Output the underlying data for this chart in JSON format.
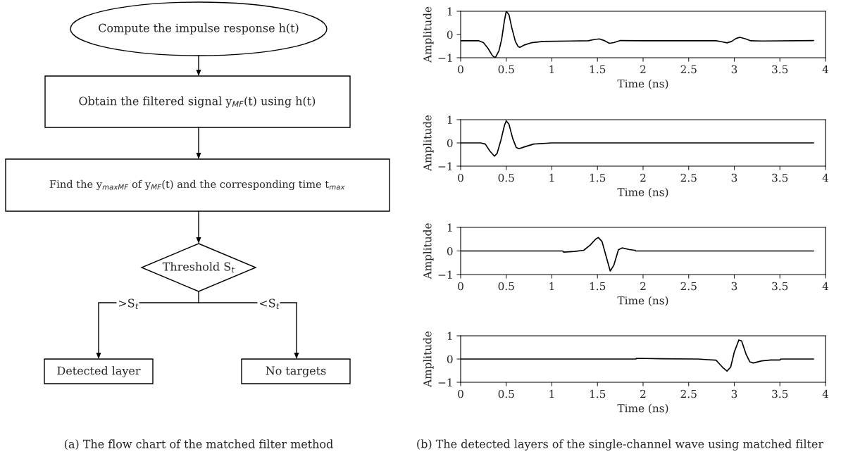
{
  "chart_data": [
    {
      "type": "other",
      "annotations": [
        "Compute the impulse response h(t)",
        "Obtain the filtered signal y$_{MF}$(t) using h(t)",
        "Find the y$_{maxMF}$ of y$_{MF}$(t) and the corresponding time t$_{max}$",
        "Threshold S$_{t}$",
        ">S$_{t}$",
        "<S$_{t}$",
        "Detected layer",
        "No targets",
        "(a) The flow chart of the matched filter method"
      ]
    },
    {
      "type": "line",
      "xlabel": "Time (ns)",
      "ylabel": "Amplitude",
      "xlim": [
        0,
        4
      ],
      "ylim": [
        -1,
        1
      ],
      "xticks": [
        0,
        0.5,
        1,
        1.5,
        2,
        2.5,
        3,
        3.5,
        4
      ],
      "yticks": [
        -1,
        0,
        1
      ],
      "grid": false,
      "legend": false,
      "series": [
        {
          "color": "#000000",
          "x": [
            0,
            0.2,
            0.25,
            0.3,
            0.35,
            0.38,
            0.42,
            0.45,
            0.48,
            0.5,
            0.53,
            0.56,
            0.6,
            0.63,
            0.65,
            0.7,
            0.78,
            0.9,
            1.2,
            1.4,
            1.46,
            1.52,
            1.58,
            1.63,
            1.68,
            1.75,
            2.0,
            2.5,
            2.8,
            2.86,
            2.92,
            2.97,
            3.02,
            3.06,
            3.12,
            3.18,
            3.3,
            3.87
          ],
          "values": [
            -0.27,
            -0.27,
            -0.35,
            -0.6,
            -0.92,
            -1.0,
            -0.7,
            -0.2,
            0.6,
            1.0,
            0.85,
            0.3,
            -0.3,
            -0.52,
            -0.55,
            -0.45,
            -0.35,
            -0.3,
            -0.28,
            -0.27,
            -0.22,
            -0.19,
            -0.27,
            -0.38,
            -0.35,
            -0.26,
            -0.27,
            -0.27,
            -0.27,
            -0.31,
            -0.36,
            -0.3,
            -0.17,
            -0.12,
            -0.18,
            -0.27,
            -0.28,
            -0.26
          ]
        }
      ]
    },
    {
      "type": "line",
      "xlabel": "Time (ns)",
      "ylabel": "Amplitude",
      "xlim": [
        0,
        4
      ],
      "ylim": [
        -1,
        1
      ],
      "xticks": [
        0,
        0.5,
        1,
        1.5,
        2,
        2.5,
        3,
        3.5,
        4
      ],
      "yticks": [
        -1,
        0,
        1
      ],
      "grid": false,
      "legend": false,
      "series": [
        {
          "color": "#000000",
          "x": [
            0,
            0.22,
            0.27,
            0.32,
            0.37,
            0.4,
            0.44,
            0.48,
            0.5,
            0.53,
            0.57,
            0.61,
            0.64,
            0.7,
            0.8,
            1.0,
            3.87
          ],
          "values": [
            0,
            0,
            -0.05,
            -0.35,
            -0.57,
            -0.45,
            0.1,
            0.75,
            0.95,
            0.8,
            0.2,
            -0.2,
            -0.25,
            -0.17,
            -0.05,
            0,
            0
          ]
        }
      ]
    },
    {
      "type": "line",
      "xlabel": "Time (ns)",
      "ylabel": "Amplitude",
      "xlim": [
        0,
        4
      ],
      "ylim": [
        -1,
        1
      ],
      "xticks": [
        0,
        0.5,
        1,
        1.5,
        2,
        2.5,
        3,
        3.5,
        4
      ],
      "yticks": [
        -1,
        0,
        1
      ],
      "grid": false,
      "legend": false,
      "series": [
        {
          "color": "#000000",
          "x": [
            0,
            1.12,
            1.13,
            1.25,
            1.35,
            1.42,
            1.48,
            1.51,
            1.55,
            1.6,
            1.64,
            1.68,
            1.73,
            1.77,
            1.85,
            1.91,
            1.92,
            3.87
          ],
          "values": [
            0,
            0,
            -0.05,
            -0.02,
            0.03,
            0.25,
            0.5,
            0.57,
            0.4,
            -0.3,
            -0.85,
            -0.6,
            0.05,
            0.13,
            0.06,
            0.03,
            0,
            0
          ]
        }
      ]
    },
    {
      "type": "line",
      "xlabel": "Time (ns)",
      "ylabel": "Amplitude",
      "xlim": [
        0,
        4
      ],
      "ylim": [
        -1,
        1
      ],
      "xticks": [
        0,
        0.5,
        1,
        1.5,
        2,
        2.5,
        3,
        3.5,
        4
      ],
      "yticks": [
        -1,
        0,
        1
      ],
      "grid": false,
      "legend": false,
      "annotations": [
        "(b) The detected layers of the single-channel wave using matched filter"
      ],
      "series": [
        {
          "color": "#000000",
          "x": [
            0,
            1.92,
            1.93,
            2.2,
            2.6,
            2.72,
            2.8,
            2.87,
            2.92,
            2.96,
            3.0,
            3.05,
            3.08,
            3.13,
            3.17,
            3.21,
            3.3,
            3.4,
            3.5,
            3.51,
            3.87
          ],
          "values": [
            0,
            0,
            0.03,
            0.01,
            0,
            -0.03,
            -0.05,
            -0.35,
            -0.52,
            -0.35,
            0.3,
            0.82,
            0.78,
            0.2,
            -0.12,
            -0.17,
            -0.08,
            -0.04,
            -0.04,
            0,
            0
          ]
        }
      ]
    }
  ]
}
